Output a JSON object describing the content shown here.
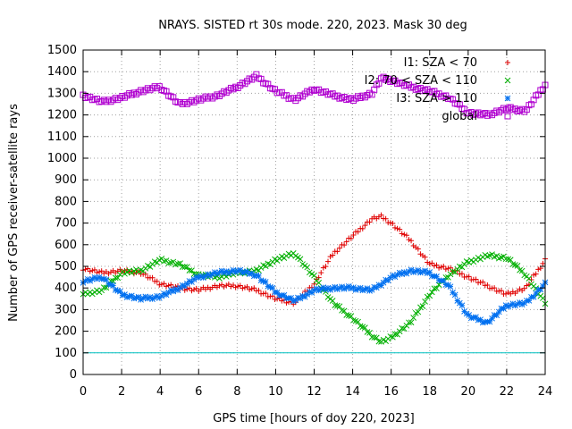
{
  "chart_data": {
    "type": "scatter",
    "title": "NRAYS. SISTED rt 30s mode. 220, 2023. Mask 30 deg",
    "xlabel": "GPS time [hours of doy 220, 2023]",
    "ylabel": "Number of GPS receiver-satellite rays",
    "xlim": [
      0,
      24
    ],
    "ylim": [
      0,
      1500
    ],
    "xticks": [
      "0",
      "2",
      "4",
      "6",
      "8",
      "10",
      "12",
      "14",
      "16",
      "18",
      "20",
      "22",
      "24"
    ],
    "yticks": [
      "0",
      "100",
      "200",
      "300",
      "400",
      "500",
      "600",
      "700",
      "800",
      "900",
      "1000",
      "1100",
      "1200",
      "1300",
      "1400",
      "1500"
    ],
    "grid": true,
    "legend_position": "top-right",
    "threshold": {
      "value": 100,
      "color": "#00c0c0"
    },
    "series": [
      {
        "name": "I1: SZA < 70",
        "marker": "+",
        "color": "#e00000",
        "x": [
          0,
          1,
          2,
          3,
          4,
          5,
          6,
          7,
          8,
          9,
          10,
          11,
          12,
          13,
          14,
          15,
          15.5,
          16,
          17,
          18,
          19,
          20,
          21,
          22,
          23,
          24
        ],
        "y": [
          490,
          470,
          480,
          470,
          420,
          400,
          390,
          410,
          410,
          390,
          350,
          330,
          420,
          560,
          640,
          720,
          730,
          700,
          620,
          510,
          490,
          450,
          410,
          370,
          400,
          530
        ]
      },
      {
        "name": "I2: 70 < SZA < 110",
        "marker": "x",
        "color": "#00b000",
        "x": [
          0,
          1,
          2,
          3,
          4,
          5,
          6,
          7,
          8,
          9,
          10,
          11,
          12,
          13,
          14,
          15,
          15.5,
          16,
          17,
          18,
          19,
          20,
          21,
          22,
          23,
          24
        ],
        "y": [
          370,
          390,
          470,
          480,
          530,
          510,
          460,
          450,
          470,
          480,
          530,
          560,
          450,
          330,
          260,
          180,
          150,
          170,
          240,
          370,
          460,
          520,
          550,
          540,
          460,
          330
        ]
      },
      {
        "name": "I3: SZA > 110",
        "marker": "*",
        "color": "#0070f0",
        "x": [
          0,
          1,
          2,
          3,
          4,
          5,
          6,
          7,
          8,
          9,
          10,
          11,
          12,
          13,
          14,
          15,
          16,
          17,
          18,
          19,
          20,
          21,
          22,
          23,
          24
        ],
        "y": [
          430,
          450,
          370,
          350,
          360,
          400,
          450,
          470,
          480,
          460,
          380,
          340,
          390,
          400,
          400,
          390,
          450,
          480,
          470,
          410,
          270,
          240,
          320,
          330,
          420
        ]
      },
      {
        "name": "global",
        "marker": "square",
        "color": "#b000d0",
        "x": [
          0,
          1,
          2,
          3,
          4,
          5,
          6,
          7,
          8,
          9,
          10,
          11,
          12,
          13,
          14,
          15,
          15.5,
          16,
          17,
          18,
          19,
          20,
          21,
          22,
          23,
          24
        ],
        "y": [
          1290,
          1260,
          1280,
          1310,
          1330,
          1250,
          1270,
          1290,
          1330,
          1380,
          1310,
          1270,
          1320,
          1290,
          1270,
          1300,
          1370,
          1360,
          1330,
          1310,
          1280,
          1210,
          1200,
          1230,
          1220,
          1340
        ]
      }
    ]
  }
}
